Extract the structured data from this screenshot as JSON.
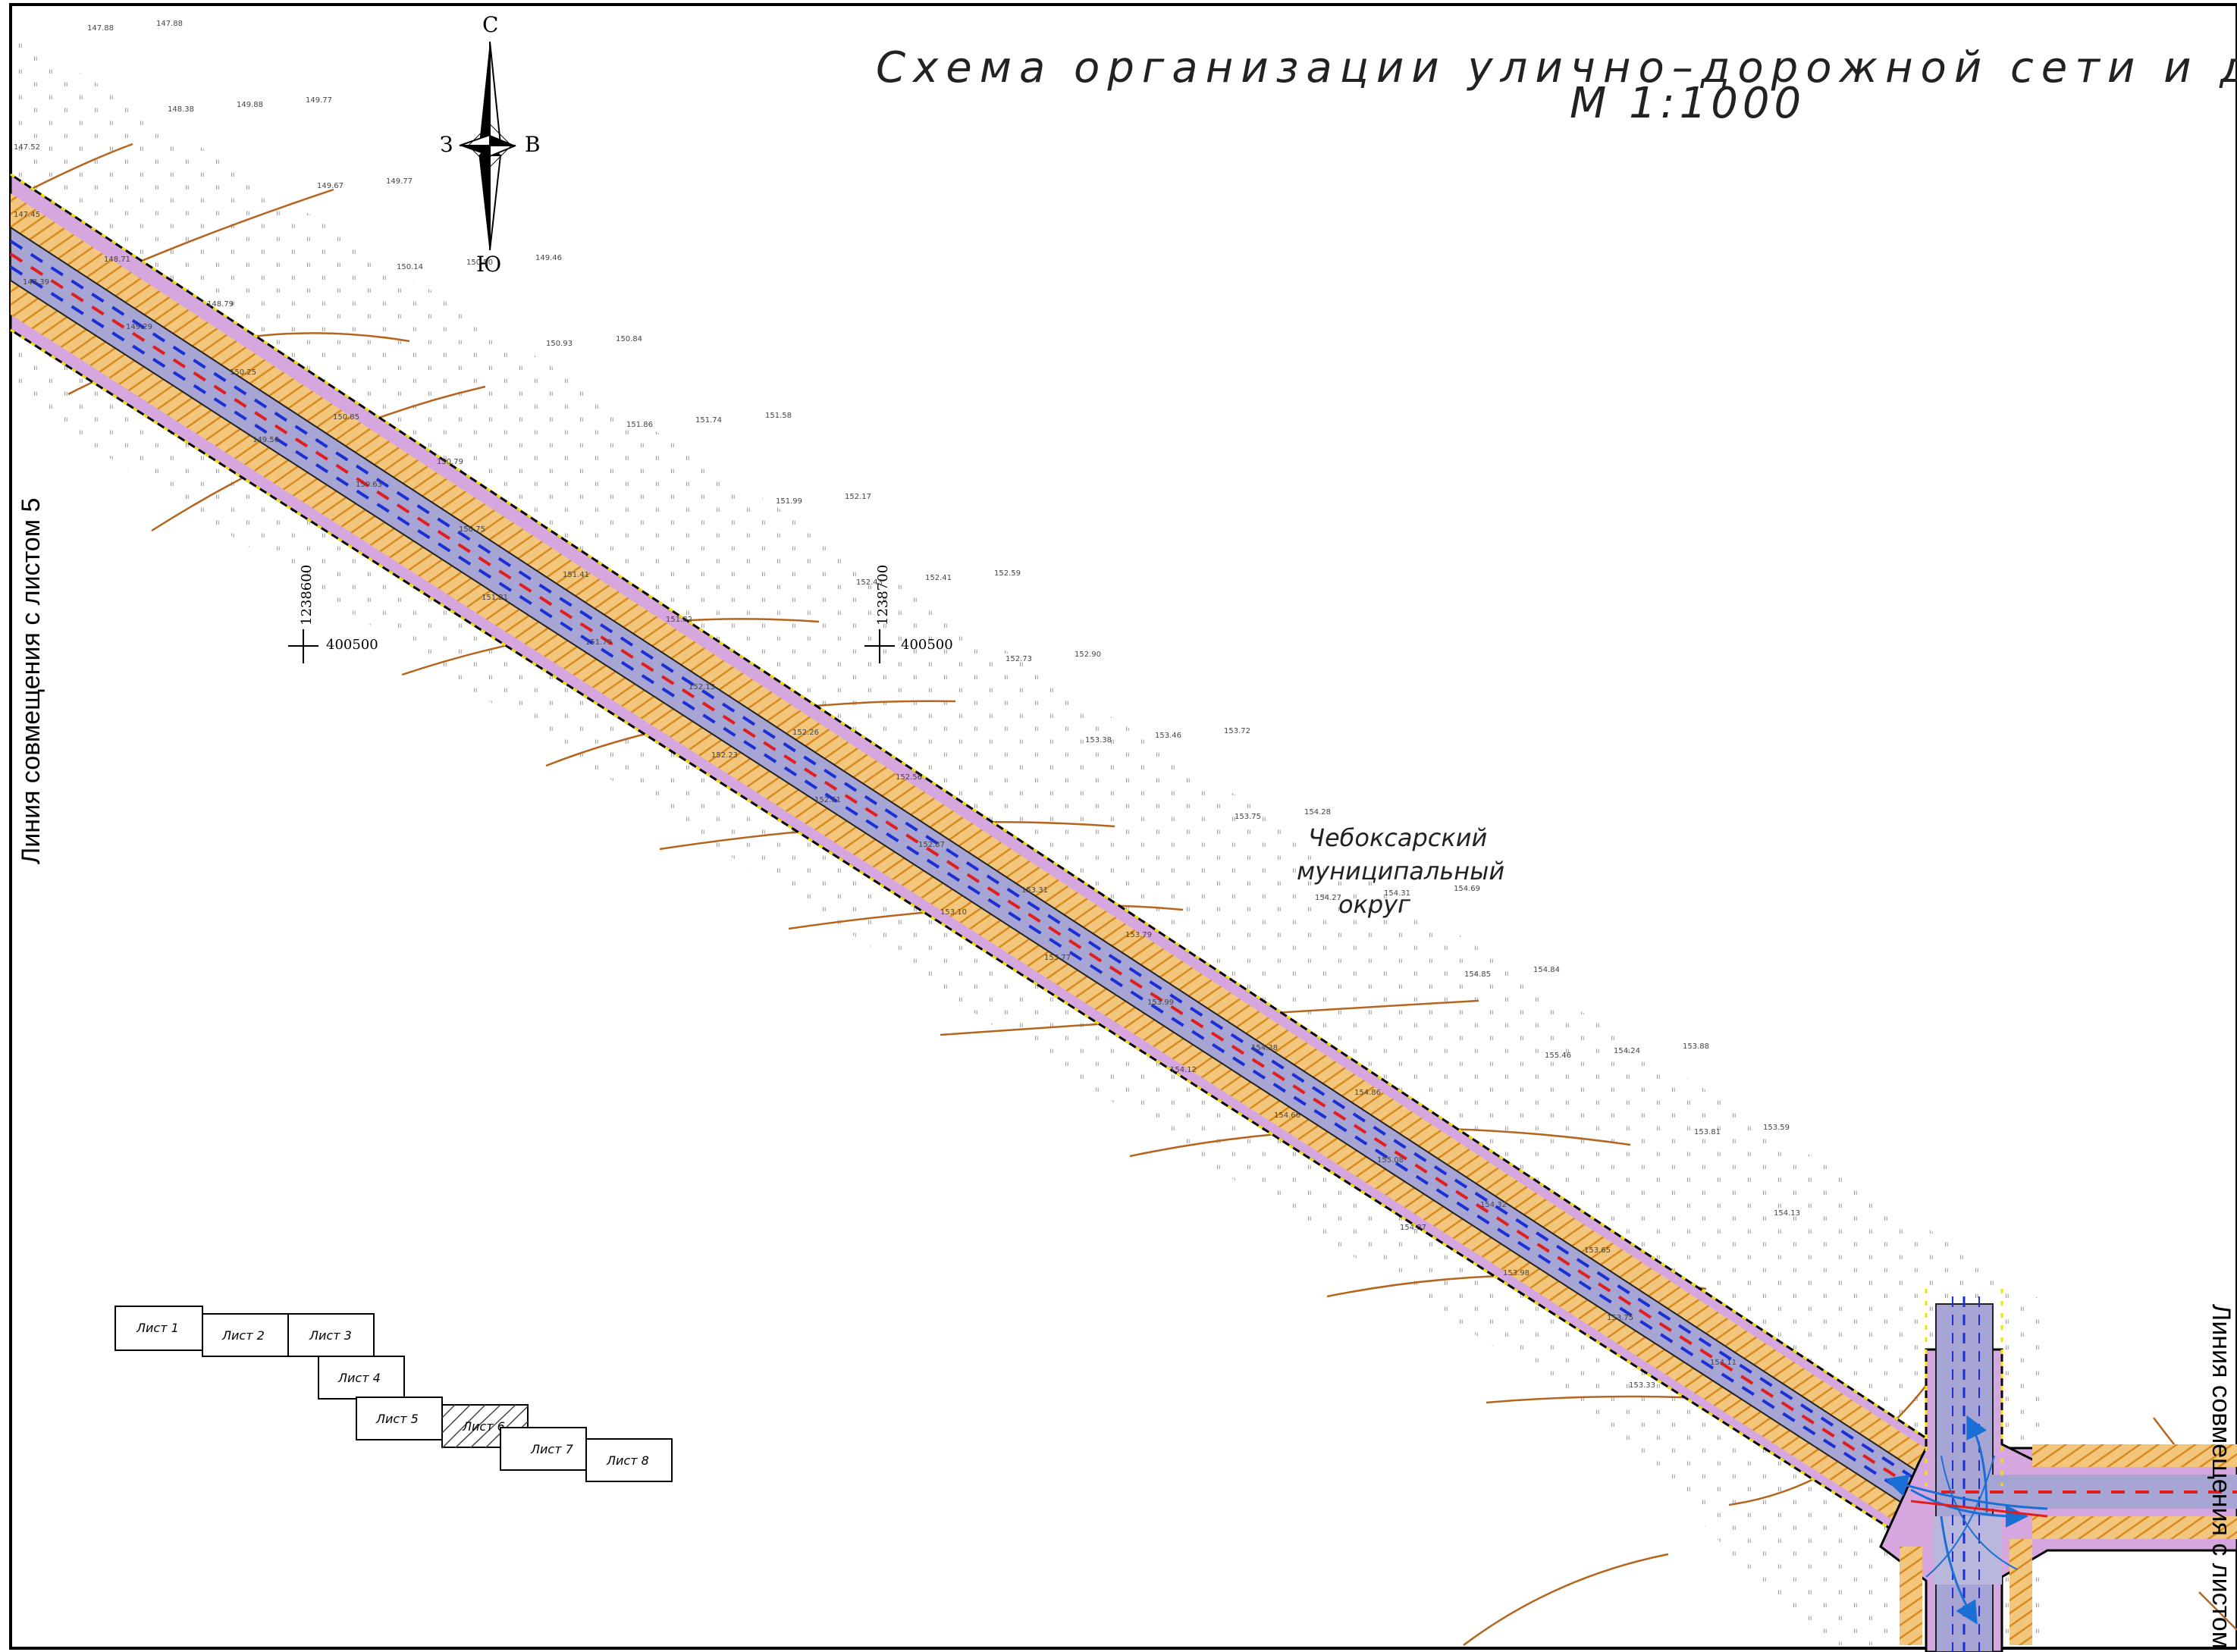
{
  "title": "Схема организации улично–дорожной сети и движения тр",
  "scale": "М 1:1000",
  "compass": {
    "north": "С",
    "south": "Ю",
    "west": "З",
    "east": "В"
  },
  "left_edge_label": "Линия совмещения с листом 5",
  "right_edge_label": "Линия совмещения с листом 7",
  "area_label": [
    "Чебоксарский",
    "муниципальный",
    "округ"
  ],
  "grid_marks": [
    {
      "vertical": "1238600",
      "horizontal": "400500"
    },
    {
      "vertical": "1238700",
      "horizontal": "400500"
    }
  ],
  "sheets": [
    "Лист 1",
    "Лист 2",
    "Лист 3",
    "Лист 4",
    "Лист 5",
    "Лист 6",
    "Лист 7",
    "Лист 8"
  ],
  "current_sheet": "Лист 6",
  "elevations": [
    "147.52",
    "147.88",
    "147.45",
    "147.88",
    "148.39",
    "148.38",
    "148.71",
    "149.88",
    "149.29",
    "149.77",
    "148.79",
    "149.67",
    "150.25",
    "149.77",
    "149.56",
    "150.14",
    "150.85",
    "150.50",
    "150.63",
    "149.46",
    "150.79",
    "150.93",
    "150.75",
    "150.84",
    "151.21",
    "151.86",
    "151.41",
    "151.74",
    "151.79",
    "151.58",
    "151.82",
    "151.99",
    "152.13",
    "152.17",
    "152.23",
    "152.43",
    "152.26",
    "152.41",
    "152.61",
    "152.59",
    "152.56",
    "152.73",
    "152.87",
    "152.90",
    "153.10",
    "153.38",
    "153.31",
    "153.46",
    "153.77",
    "153.72",
    "153.79",
    "153.75",
    "153.99",
    "154.28",
    "154.12",
    "154.27",
    "154.38",
    "154.31",
    "154.66",
    "154.69",
    "154.86",
    "154.85",
    "155.08",
    "154.84",
    "154.87",
    "155.46",
    "154.32",
    "154.24",
    "153.98",
    "153.88",
    "153.65",
    "153.81",
    "153.75",
    "153.59",
    "153.33",
    "154.13",
    "154.11"
  ],
  "colors": {
    "road_fill": "#d6a6de",
    "carriageway": "#a7a5d3",
    "slope_hatch": "#e9a23b",
    "contour": "#b5651d",
    "lane_dash_blue": "#1a2fd4",
    "lane_dash_red": "#e21d1d",
    "edge_yellow": "#f2e200"
  }
}
